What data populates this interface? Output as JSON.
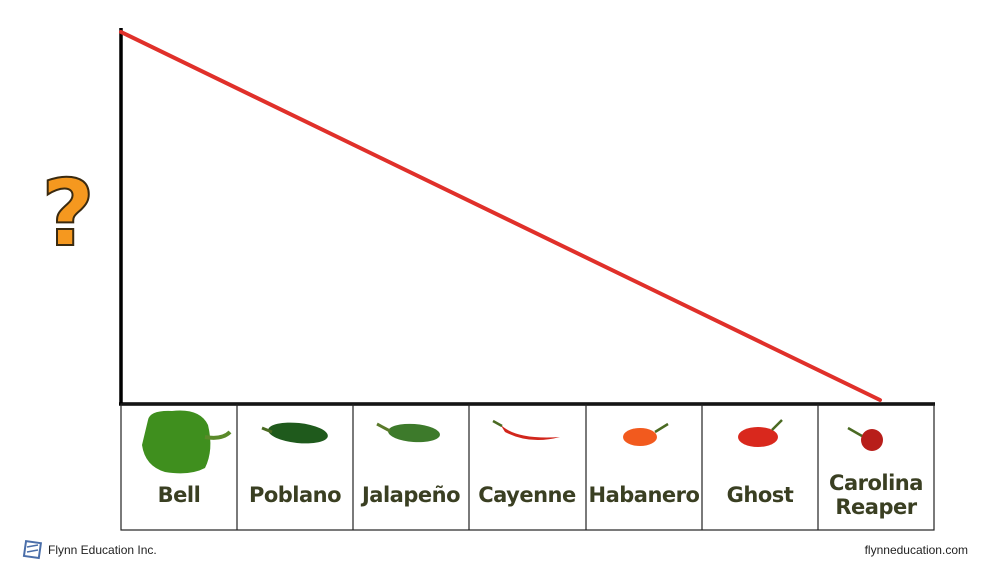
{
  "y_label": "?",
  "categories": [
    "Bell",
    "Poblano",
    "Jalapeño",
    "Cayenne",
    "Habanero",
    "Ghost",
    "Carolina Reaper"
  ],
  "footer": {
    "left": "Flynn Education Inc.",
    "right": "flynneducation.com"
  }
}
